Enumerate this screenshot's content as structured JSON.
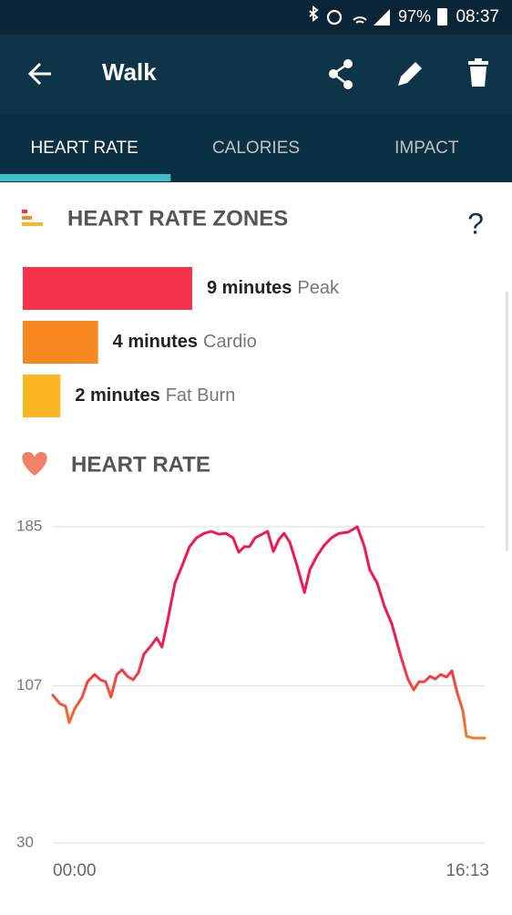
{
  "status_bar": {
    "battery": "97%",
    "time": "08:37"
  },
  "app_bar": {
    "title": "Walk"
  },
  "tabs": {
    "items": [
      "HEART RATE",
      "CALORIES",
      "IMPACT"
    ],
    "active": 0
  },
  "chart_data": [
    {
      "type": "bar",
      "title": "HEART RATE ZONES",
      "help": "?",
      "categories": [
        "Peak",
        "Cardio",
        "Fat Burn"
      ],
      "values": [
        9,
        4,
        2
      ],
      "value_labels": [
        "9 minutes",
        "4 minutes",
        "2 minutes"
      ],
      "colors": [
        "#f53249",
        "#f7871f",
        "#fbb623"
      ]
    },
    {
      "type": "line",
      "title": "HEART RATE",
      "x": [
        0,
        16,
        29,
        37,
        49,
        66,
        78,
        94,
        107,
        119,
        131,
        144,
        156,
        168,
        181,
        193,
        205,
        222,
        234,
        246,
        259,
        275,
        292,
        308,
        324,
        341,
        357,
        374,
        390,
        406,
        419,
        431,
        443,
        456,
        472,
        484,
        497,
        509,
        521,
        534,
        550,
        567,
        579,
        595,
        612,
        628,
        645,
        665,
        686,
        702,
        714,
        731,
        747,
        764,
        784,
        800,
        813,
        825,
        837,
        850,
        862,
        874,
        887,
        899,
        911,
        924,
        932,
        948,
        973
      ],
      "values": [
        102.4,
        98.3,
        97,
        89,
        95.7,
        101.5,
        109,
        112.6,
        110,
        109,
        101.5,
        112.6,
        114.9,
        111.7,
        110,
        113.5,
        122.5,
        126.9,
        130.5,
        126,
        139.4,
        157.3,
        166.2,
        175.2,
        179.6,
        181.8,
        182.7,
        181.4,
        181.8,
        179.6,
        172.5,
        175.2,
        175.2,
        179.6,
        181.4,
        182.7,
        172.9,
        178.7,
        181.8,
        177.4,
        166.2,
        152.8,
        164,
        170.7,
        176,
        179.6,
        181.8,
        182.3,
        185,
        175.2,
        164,
        157.3,
        146.1,
        137.2,
        121.6,
        110.4,
        105,
        109,
        109,
        111.7,
        110.4,
        112.6,
        111.3,
        114.4,
        103.7,
        94.8,
        82.3,
        81.4,
        81.4
      ],
      "colors": [
        "#f7941d",
        "#f0194d"
      ],
      "xlim": [
        0,
        973
      ],
      "xticks": [
        {
          "value": 0,
          "label": "00:00"
        },
        {
          "value": 973,
          "label": "16:13"
        }
      ],
      "ylim": [
        30,
        185
      ],
      "yticks": [
        30,
        107,
        185
      ],
      "grid": true
    }
  ]
}
